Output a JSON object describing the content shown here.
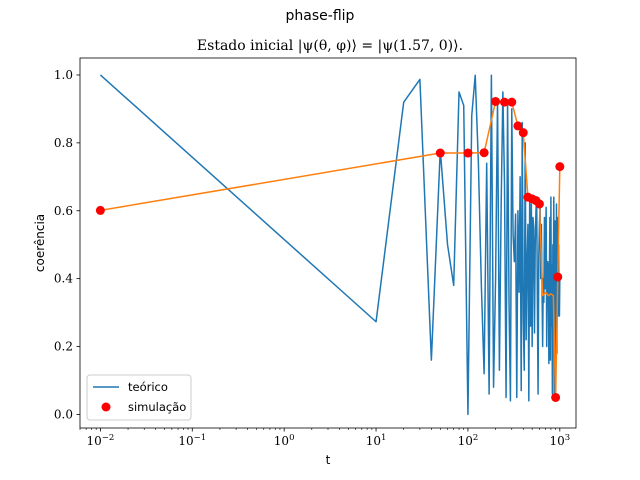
{
  "figure": {
    "suptitle": "phase-flip",
    "background": "#ffffff"
  },
  "chart_data": {
    "type": "line",
    "title": "Estado inicial |ψ(θ, φ)⟩ = |ψ(1.57, 0)⟩.",
    "xlabel": "t",
    "ylabel": "coerência",
    "xscale": "log",
    "xlim": [
      0.006,
      1500
    ],
    "ylim": [
      -0.04,
      1.05
    ],
    "xticks": [
      {
        "value": 0.01,
        "base": "10",
        "exp": "−2"
      },
      {
        "value": 0.1,
        "base": "10",
        "exp": "−1"
      },
      {
        "value": 1,
        "base": "10",
        "exp": "0"
      },
      {
        "value": 10,
        "base": "10",
        "exp": "1"
      },
      {
        "value": 100,
        "base": "10",
        "exp": "2"
      },
      {
        "value": 1000,
        "base": "10",
        "exp": "3"
      }
    ],
    "yticks": [
      {
        "value": 0.0,
        "label": "0.0"
      },
      {
        "value": 0.2,
        "label": "0.2"
      },
      {
        "value": 0.4,
        "label": "0.4"
      },
      {
        "value": 0.6,
        "label": "0.6"
      },
      {
        "value": 0.8,
        "label": "0.8"
      },
      {
        "value": 1.0,
        "label": "1.0"
      }
    ],
    "grid": false,
    "legend_position": "lower-left",
    "series": [
      {
        "name": "teórico",
        "kind": "line",
        "color": "#1f77b4",
        "x": [
          0.01,
          10,
          20,
          30,
          40,
          50,
          60,
          70,
          80,
          90,
          100,
          110,
          120,
          130,
          140,
          150,
          160,
          170,
          180,
          190,
          200,
          210,
          220,
          230,
          240,
          250,
          260,
          270,
          280,
          290,
          300,
          310,
          320,
          330,
          340,
          350,
          360,
          370,
          380,
          390,
          400,
          410,
          420,
          430,
          440,
          450,
          460,
          470,
          480,
          490,
          500,
          510,
          520,
          530,
          540,
          550,
          560,
          570,
          580,
          590,
          600,
          610,
          620,
          630,
          640,
          650,
          660,
          670,
          680,
          690,
          700,
          710,
          720,
          730,
          740,
          750,
          760,
          770,
          780,
          790,
          800,
          810,
          820,
          830,
          840,
          850,
          860,
          870,
          880,
          890,
          900,
          910,
          920,
          930,
          940,
          950,
          960,
          970,
          980,
          990,
          1000
        ],
        "y": [
          1.0,
          0.273,
          0.92,
          0.987,
          0.16,
          0.78,
          0.5,
          0.38,
          0.95,
          0.91,
          0.0,
          0.88,
          0.999,
          0.74,
          0.38,
          0.12,
          0.74,
          0.06,
          0.999,
          0.08,
          0.4,
          0.93,
          0.13,
          0.62,
          0.95,
          0.68,
          0.05,
          0.92,
          0.33,
          0.04,
          0.9,
          0.53,
          0.45,
          0.59,
          0.05,
          0.6,
          0.36,
          0.7,
          0.07,
          0.86,
          0.28,
          0.13,
          0.8,
          0.22,
          0.45,
          0.56,
          0.04,
          0.64,
          0.26,
          0.62,
          0.2,
          0.58,
          0.55,
          0.24,
          0.5,
          0.6,
          0.64,
          0.32,
          0.06,
          0.46,
          0.56,
          0.62,
          0.4,
          0.56,
          0.38,
          0.2,
          0.4,
          0.33,
          0.58,
          0.37,
          0.5,
          0.61,
          0.2,
          0.42,
          0.45,
          0.42,
          0.15,
          0.42,
          0.58,
          0.16,
          0.64,
          0.26,
          0.44,
          0.06,
          0.5,
          0.34,
          0.64,
          0.05,
          0.41,
          0.57,
          0.15,
          0.38,
          0.62,
          0.18,
          0.58,
          0.46,
          0.29,
          0.5,
          0.31,
          0.29,
          0.4
        ]
      },
      {
        "name": "",
        "kind": "line",
        "color": "#ff7f0e",
        "x": [
          0.01,
          50,
          100,
          150,
          200,
          250,
          300,
          350,
          400,
          450,
          500,
          550,
          600,
          650,
          700,
          750,
          800,
          850,
          900,
          950,
          1000
        ],
        "y": [
          0.601,
          0.77,
          0.77,
          0.771,
          0.922,
          0.92,
          0.92,
          0.85,
          0.83,
          0.64,
          0.635,
          0.63,
          0.62,
          0.35,
          0.36,
          0.35,
          0.355,
          0.35,
          0.05,
          0.4,
          0.73
        ]
      },
      {
        "name": "simulação",
        "kind": "scatter",
        "color": "#ff0000",
        "x": [
          0.01,
          50,
          100,
          150,
          200,
          250,
          300,
          350,
          400,
          450,
          500,
          550,
          600,
          900,
          950,
          1000
        ],
        "y": [
          0.601,
          0.77,
          0.77,
          0.771,
          0.922,
          0.92,
          0.92,
          0.85,
          0.83,
          0.64,
          0.635,
          0.63,
          0.62,
          0.05,
          0.405,
          0.73
        ]
      }
    ]
  }
}
